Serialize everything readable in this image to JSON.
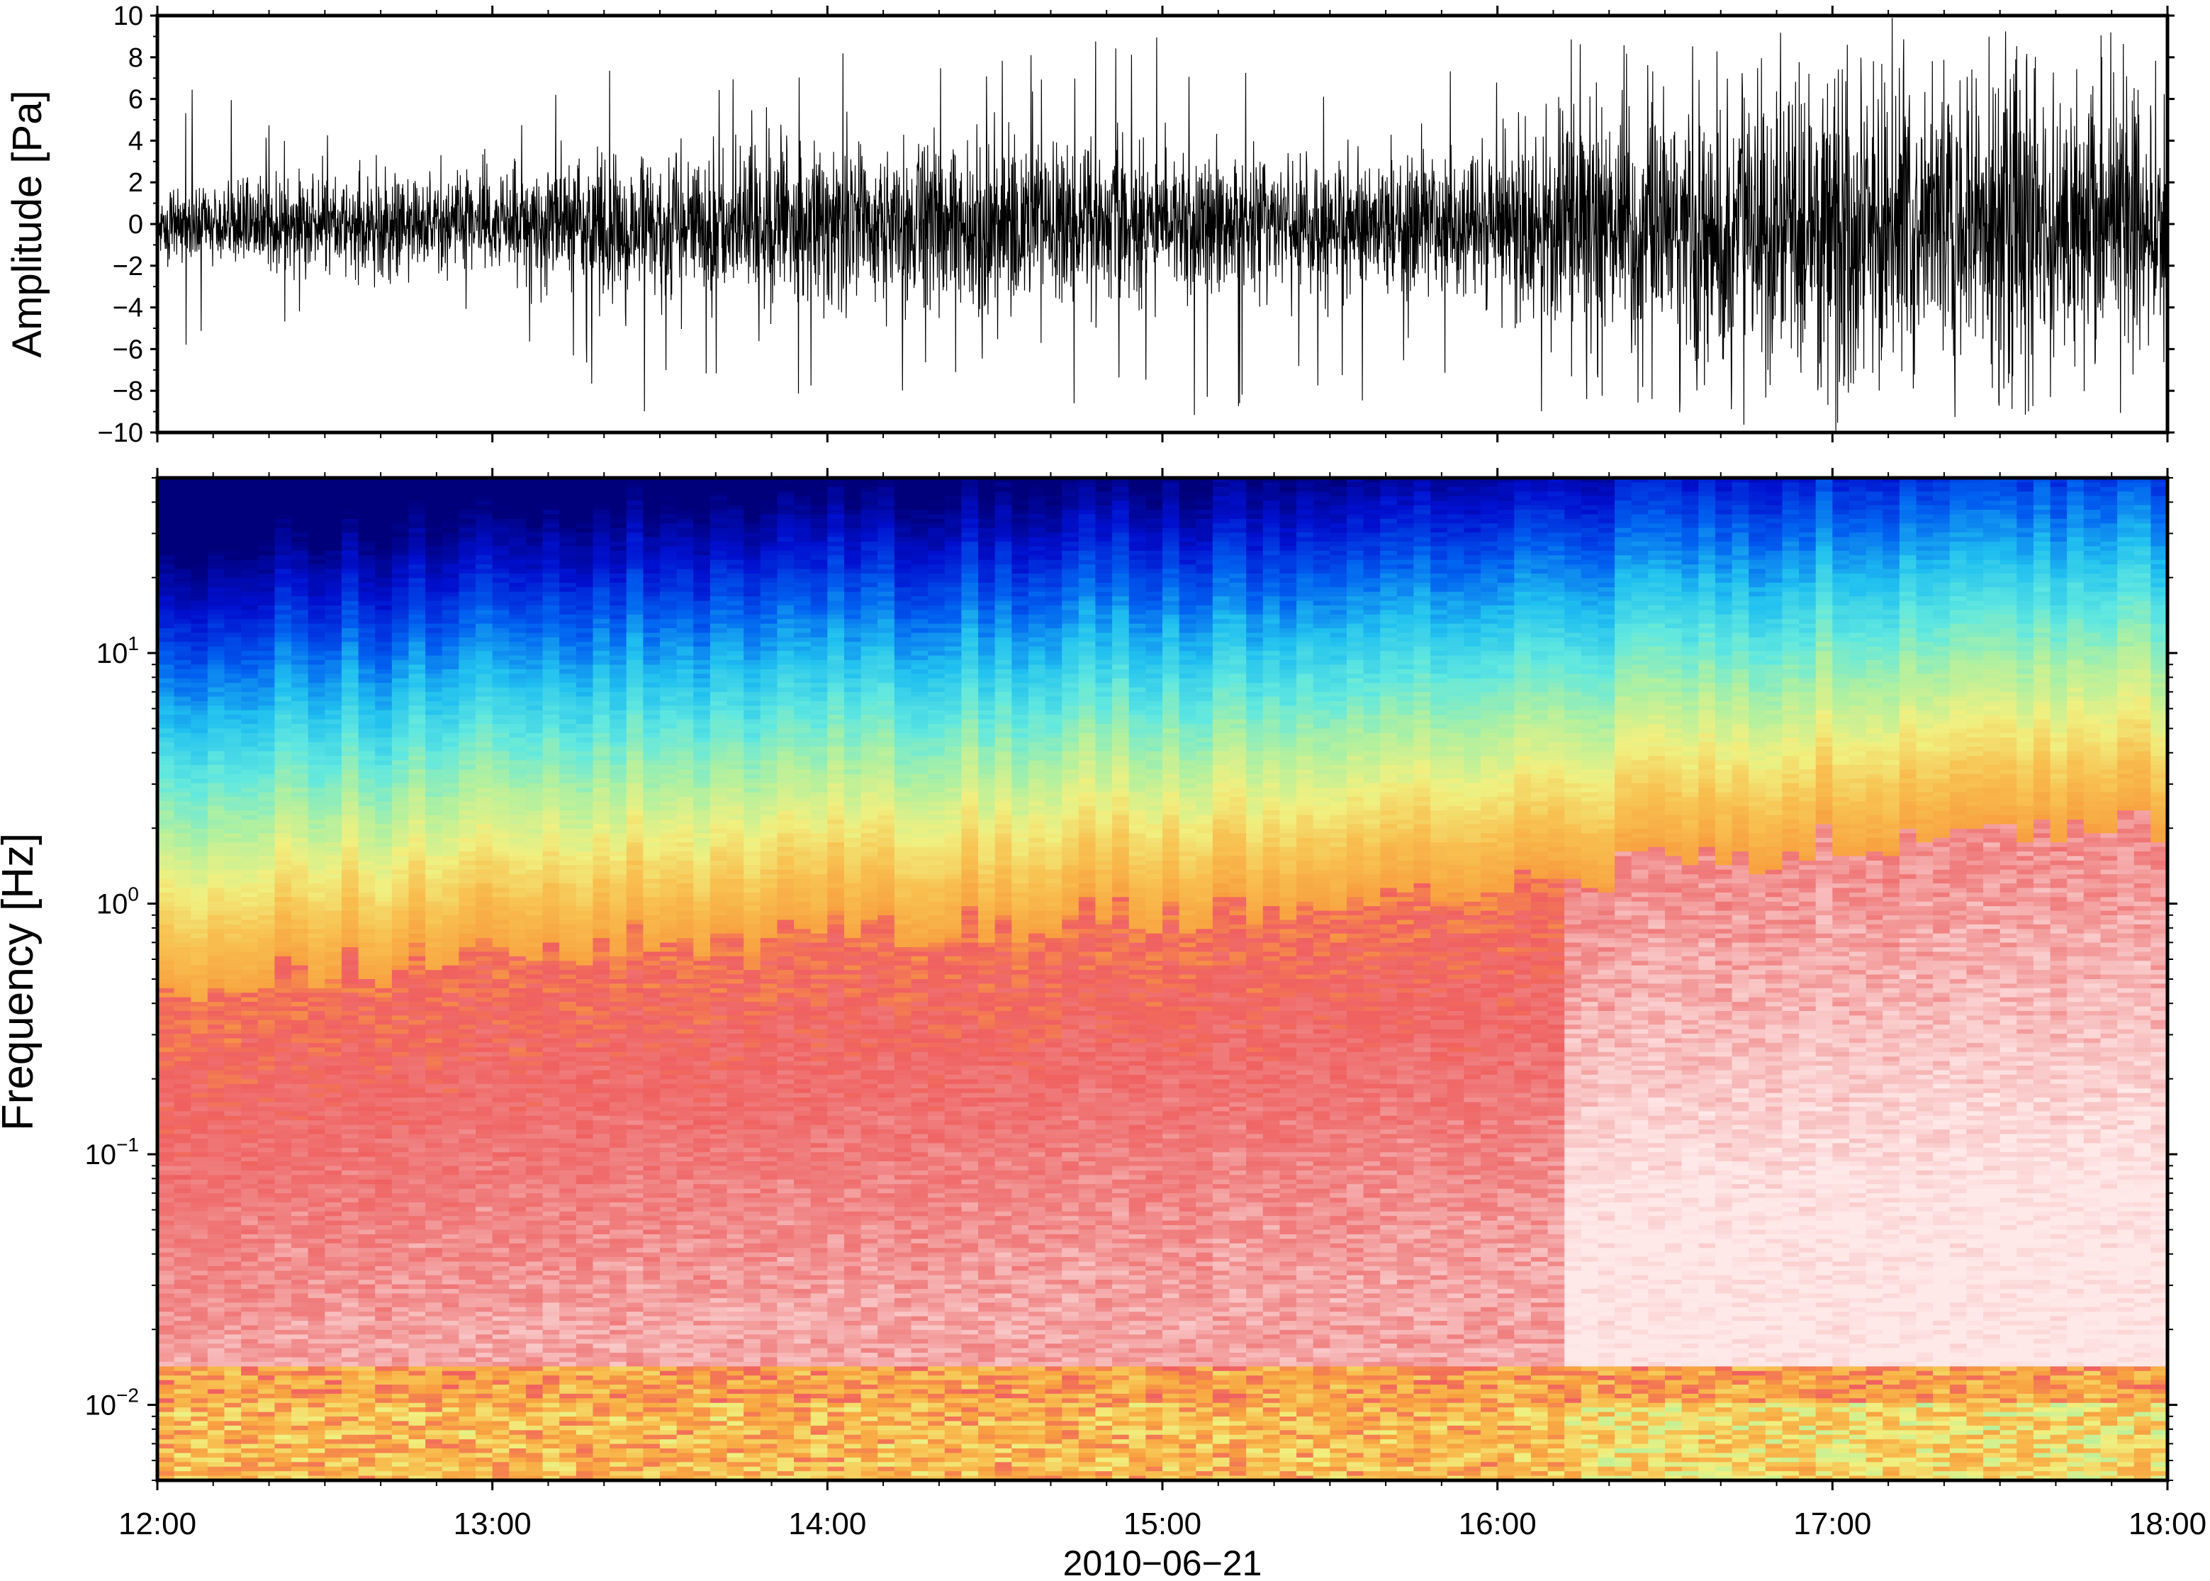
{
  "chart_data": [
    {
      "type": "line",
      "ylabel": "Amplitude [Pa]",
      "ylim": [
        -10,
        10
      ],
      "yticks": [
        10,
        8,
        6,
        4,
        2,
        0,
        -2,
        -4,
        -6,
        -8,
        -10
      ],
      "ytick_labels": [
        "10",
        "8",
        "6",
        "4",
        "2",
        "0",
        "−2",
        "−4",
        "−6",
        "−8",
        "−10"
      ],
      "xlim_hours": [
        12,
        18
      ],
      "envelope": {
        "x_hours": [
          12.0,
          12.5,
          13.0,
          13.5,
          14.0,
          14.5,
          15.0,
          15.5,
          16.0,
          16.2,
          16.5,
          16.8,
          17.0,
          17.3,
          17.6,
          18.0
        ],
        "typical_amplitude": [
          1.5,
          2.0,
          2.2,
          3.2,
          3.5,
          3.7,
          3.0,
          3.0,
          3.6,
          5.0,
          5.5,
          6.5,
          7.0,
          6.5,
          6.5,
          6.0
        ],
        "peak_amplitude": [
          7.5,
          4.5,
          5.0,
          9.5,
          8.5,
          8.5,
          9.5,
          8.5,
          9.0,
          10,
          10,
          10,
          10,
          10,
          10,
          10
        ]
      }
    },
    {
      "type": "heatmap",
      "ylabel": "Frequency [Hz]",
      "yscale": "log",
      "ylim": [
        0.005,
        50
      ],
      "yticks": [
        10,
        1,
        0.1,
        0.01
      ],
      "ytick_labels": [
        {
          "base": "10",
          "exp": "1"
        },
        {
          "base": "10",
          "exp": "0"
        },
        {
          "base": "10",
          "exp": "−1"
        },
        {
          "base": "10",
          "exp": "−2"
        }
      ],
      "xlabel": "2010−06−21",
      "xlim_hours": [
        12,
        18
      ],
      "xticks": [
        "12:00",
        "13:00",
        "14:00",
        "15:00",
        "16:00",
        "17:00",
        "18:00"
      ],
      "colormap": [
        "#00007a",
        "#0010d0",
        "#0060f0",
        "#20c0f0",
        "#60e8e0",
        "#b0f0a0",
        "#f0f080",
        "#f8c050",
        "#f8a040",
        "#f06060",
        "#f08080",
        "#f8c0c0",
        "#ffe8e8"
      ],
      "level_at_1hz": {
        "x_hours": [
          12,
          13,
          14,
          15,
          16,
          16.3,
          17,
          18
        ],
        "log10_freq_of_orange_band": [
          -0.35,
          -0.2,
          -0.1,
          -0.05,
          0.05,
          0.1,
          0.25,
          0.3
        ]
      }
    }
  ]
}
